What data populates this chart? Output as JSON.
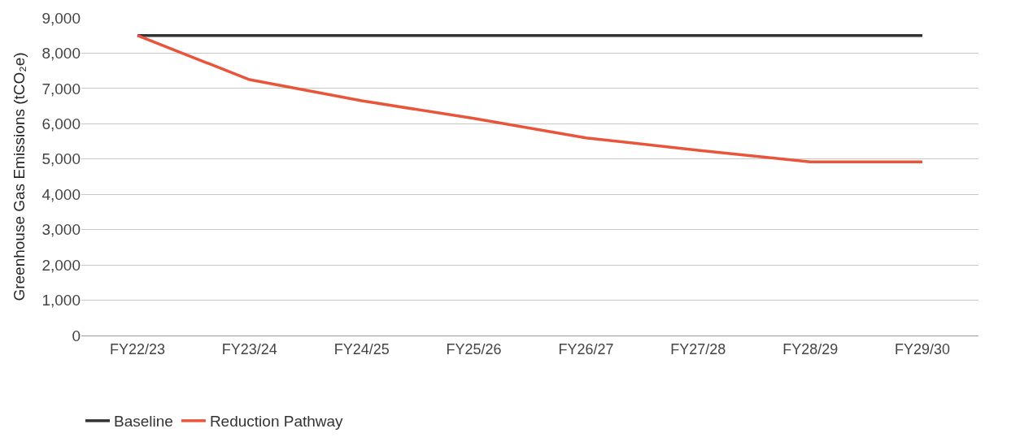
{
  "chart_data": {
    "type": "line",
    "ylabel": "Greenhouse Gas Emissions (tCO₂e)",
    "categories": [
      "FY22/23",
      "FY23/24",
      "FY24/25",
      "FY25/26",
      "FY26/27",
      "FY27/28",
      "FY28/29",
      "FY29/30"
    ],
    "series": [
      {
        "name": "Baseline",
        "color": "#333333",
        "values": [
          8500,
          8500,
          8500,
          8500,
          8500,
          8500,
          8500,
          8500
        ]
      },
      {
        "name": "Reduction Pathway",
        "color": "#e8553a",
        "values": [
          8500,
          7250,
          6650,
          6150,
          5600,
          5250,
          4920,
          4920
        ]
      }
    ],
    "ylim": [
      0,
      9000
    ],
    "yticks": [
      {
        "value": 0,
        "label": "0"
      },
      {
        "value": 1000,
        "label": "1,000"
      },
      {
        "value": 2000,
        "label": "2,000"
      },
      {
        "value": 3000,
        "label": "3,000"
      },
      {
        "value": 4000,
        "label": "4,000"
      },
      {
        "value": 5000,
        "label": "5,000"
      },
      {
        "value": 6000,
        "label": "6,000"
      },
      {
        "value": 7000,
        "label": "7,000"
      },
      {
        "value": 8000,
        "label": "8,000"
      },
      {
        "value": 9000,
        "label": "9,000"
      }
    ],
    "grid": "y",
    "legend": "bottom left",
    "marker": "none",
    "line_style": "solid"
  }
}
